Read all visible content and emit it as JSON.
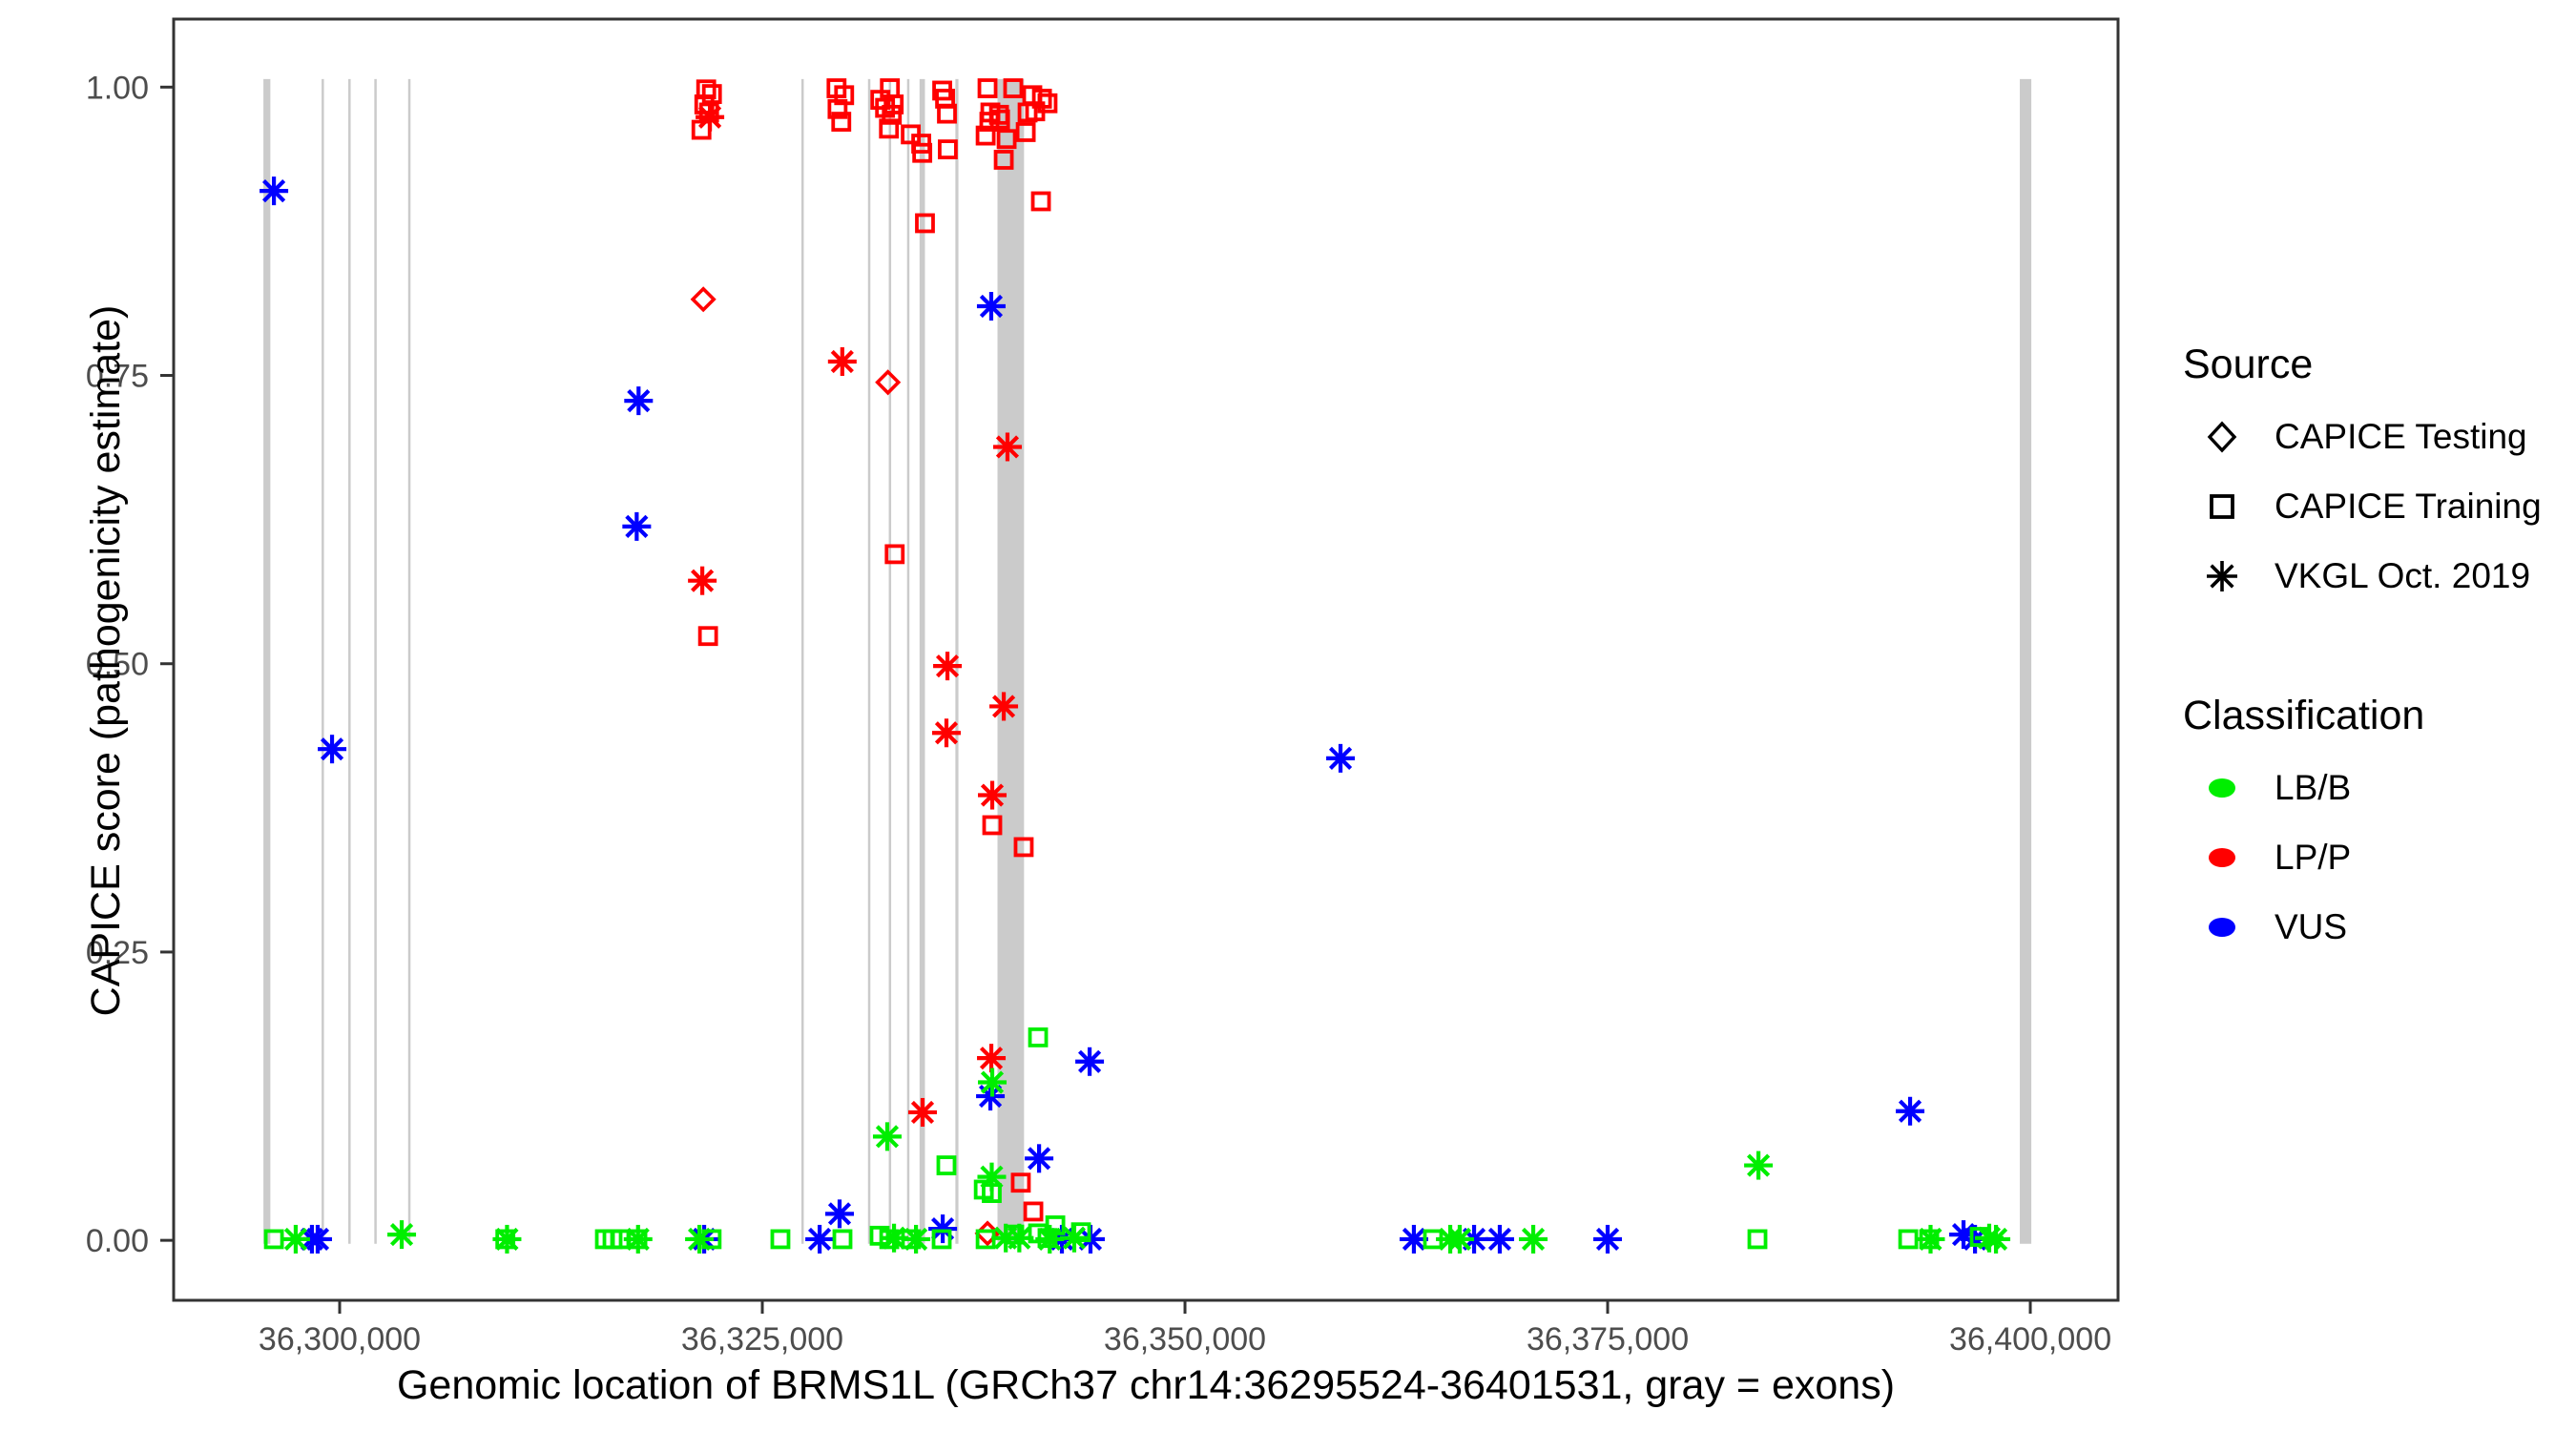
{
  "chart_data": {
    "type": "scatter",
    "title": "",
    "xlabel": "Genomic location of BRMS1L (GRCh37 chr14:36295524-36401531, gray = exons)",
    "ylabel": "CAPICE score (pathogenicity estimate)",
    "x_range": [
      36290180,
      36405190
    ],
    "y_range": [
      -0.052,
      1.059
    ],
    "x_ticks": [
      {
        "value": 36300000,
        "label": "36,300,000"
      },
      {
        "value": 36325000,
        "label": "36,325,000"
      },
      {
        "value": 36350000,
        "label": "36,350,000"
      },
      {
        "value": 36375000,
        "label": "36,375,000"
      },
      {
        "value": 36400000,
        "label": "36,400,000"
      }
    ],
    "y_ticks": [
      {
        "value": 0.0,
        "label": "0.00"
      },
      {
        "value": 0.25,
        "label": "0.25"
      },
      {
        "value": 0.5,
        "label": "0.50"
      },
      {
        "value": 0.75,
        "label": "0.75"
      },
      {
        "value": 1.0,
        "label": "1.00"
      }
    ],
    "grid": false,
    "exons_note": "gray vertical bars = exons, span score 0 to 1",
    "exons": [
      [
        36295490,
        36295900
      ],
      [
        36298930,
        36299040
      ],
      [
        36300510,
        36300630
      ],
      [
        36302050,
        36302170
      ],
      [
        36304050,
        36304170
      ],
      [
        36327310,
        36327430
      ],
      [
        36331250,
        36331370
      ],
      [
        36332480,
        36332600
      ],
      [
        36333560,
        36333680
      ],
      [
        36334300,
        36334620
      ],
      [
        36336420,
        36336600
      ],
      [
        36338910,
        36340480
      ],
      [
        36399380,
        36400060
      ]
    ],
    "points_format": [
      "genomic_position",
      "capice_score",
      "shape: s=square(CAPICE Training) d=diamond(CAPICE Testing) a=asterisk(VKGL Oct. 2019)",
      "class: b=LB/B p=LP/P v=VUS"
    ],
    "points": [
      [
        36321680,
        0.998,
        "s",
        "p"
      ],
      [
        36322020,
        0.994,
        "s",
        "p"
      ],
      [
        36321570,
        0.985,
        "s",
        "p"
      ],
      [
        36321850,
        0.978,
        "s",
        "p"
      ],
      [
        36321400,
        0.963,
        "s",
        "p"
      ],
      [
        36329390,
        0.999,
        "s",
        "p"
      ],
      [
        36329840,
        0.993,
        "s",
        "p"
      ],
      [
        36329450,
        0.981,
        "s",
        "p"
      ],
      [
        36329670,
        0.97,
        "s",
        "p"
      ],
      [
        36332545,
        0.999,
        "s",
        "p"
      ],
      [
        36331980,
        0.989,
        "s",
        "p"
      ],
      [
        36332770,
        0.985,
        "s",
        "p"
      ],
      [
        36332260,
        0.982,
        "s",
        "p"
      ],
      [
        36332660,
        0.976,
        "s",
        "p"
      ],
      [
        36332490,
        0.964,
        "s",
        "p"
      ],
      [
        36333780,
        0.959,
        "s",
        "p"
      ],
      [
        36334400,
        0.951,
        "s",
        "p"
      ],
      [
        36334460,
        0.943,
        "s",
        "p"
      ],
      [
        36334620,
        0.882,
        "s",
        "p"
      ],
      [
        36335640,
        0.997,
        "s",
        "p"
      ],
      [
        36335810,
        0.99,
        "s",
        "p"
      ],
      [
        36335920,
        0.977,
        "s",
        "p"
      ],
      [
        36335970,
        0.946,
        "s",
        "p"
      ],
      [
        36338320,
        0.999,
        "s",
        "p"
      ],
      [
        36339840,
        0.999,
        "s",
        "p"
      ],
      [
        36340970,
        0.993,
        "s",
        "p"
      ],
      [
        36341540,
        0.99,
        "s",
        "p"
      ],
      [
        36341870,
        0.986,
        "s",
        "p"
      ],
      [
        36341140,
        0.979,
        "s",
        "p"
      ],
      [
        36338490,
        0.978,
        "s",
        "p"
      ],
      [
        36339000,
        0.976,
        "s",
        "p"
      ],
      [
        36339060,
        0.972,
        "s",
        "p"
      ],
      [
        36338430,
        0.97,
        "s",
        "p"
      ],
      [
        36340690,
        0.978,
        "s",
        "p"
      ],
      [
        36338210,
        0.958,
        "s",
        "p"
      ],
      [
        36339450,
        0.955,
        "s",
        "p"
      ],
      [
        36340580,
        0.961,
        "s",
        "p"
      ],
      [
        36339280,
        0.937,
        "s",
        "p"
      ],
      [
        36341480,
        0.901,
        "s",
        "p"
      ],
      [
        36321790,
        0.524,
        "s",
        "p"
      ],
      [
        36332830,
        0.595,
        "s",
        "p"
      ],
      [
        36338600,
        0.36,
        "s",
        "p"
      ],
      [
        36340460,
        0.341,
        "s",
        "p"
      ],
      [
        36340290,
        0.05,
        "s",
        "p"
      ],
      [
        36341030,
        0.025,
        "s",
        "p"
      ],
      [
        36321510,
        0.816,
        "d",
        "p"
      ],
      [
        36332430,
        0.744,
        "d",
        "p"
      ],
      [
        36338320,
        0.006,
        "d",
        "p"
      ],
      [
        36321900,
        0.974,
        "a",
        "p"
      ],
      [
        36329730,
        0.762,
        "a",
        "p"
      ],
      [
        36321450,
        0.572,
        "a",
        "p"
      ],
      [
        36339500,
        0.688,
        "a",
        "p"
      ],
      [
        36335950,
        0.498,
        "a",
        "p"
      ],
      [
        36339280,
        0.463,
        "a",
        "p"
      ],
      [
        36335890,
        0.44,
        "a",
        "p"
      ],
      [
        36338600,
        0.386,
        "a",
        "p"
      ],
      [
        36334480,
        0.111,
        "a",
        "p"
      ],
      [
        36338545,
        0.158,
        "a",
        "p"
      ],
      [
        36296110,
        0.91,
        "a",
        "v"
      ],
      [
        36299550,
        0.426,
        "a",
        "v"
      ],
      [
        36317680,
        0.728,
        "a",
        "v"
      ],
      [
        36317570,
        0.619,
        "a",
        "v"
      ],
      [
        36338540,
        0.81,
        "a",
        "v"
      ],
      [
        36359200,
        0.418,
        "a",
        "v"
      ],
      [
        36344360,
        0.155,
        "a",
        "v"
      ],
      [
        36338490,
        0.125,
        "a",
        "v"
      ],
      [
        36341370,
        0.071,
        "a",
        "v"
      ],
      [
        36329570,
        0.023,
        "a",
        "v"
      ],
      [
        36335670,
        0.01,
        "a",
        "v"
      ],
      [
        36392890,
        0.112,
        "a",
        "v"
      ],
      [
        36396050,
        0.005,
        "a",
        "v"
      ],
      [
        36298360,
        0.001,
        "a",
        "v"
      ],
      [
        36298700,
        0.001,
        "a",
        "v"
      ],
      [
        36321560,
        0.001,
        "a",
        "v"
      ],
      [
        36328390,
        0.001,
        "a",
        "v"
      ],
      [
        36342720,
        0.001,
        "a",
        "v"
      ],
      [
        36344410,
        0.001,
        "a",
        "v"
      ],
      [
        36363540,
        0.001,
        "a",
        "v"
      ],
      [
        36367100,
        0.001,
        "a",
        "v"
      ],
      [
        36368620,
        0.001,
        "a",
        "v"
      ],
      [
        36375000,
        0.001,
        "a",
        "v"
      ],
      [
        36396730,
        0.001,
        "a",
        "v"
      ],
      [
        36296110,
        0.001,
        "s",
        "b"
      ],
      [
        36309800,
        0.001,
        "s",
        "b"
      ],
      [
        36315690,
        0.001,
        "s",
        "b"
      ],
      [
        36316140,
        0.001,
        "s",
        "b"
      ],
      [
        36316590,
        0.001,
        "s",
        "b"
      ],
      [
        36317610,
        0.001,
        "s",
        "b"
      ],
      [
        36322000,
        0.001,
        "s",
        "b"
      ],
      [
        36326070,
        0.001,
        "s",
        "b"
      ],
      [
        36329740,
        0.001,
        "s",
        "b"
      ],
      [
        36331940,
        0.004,
        "s",
        "b"
      ],
      [
        36332510,
        0.001,
        "s",
        "b"
      ],
      [
        36333800,
        0.001,
        "s",
        "b"
      ],
      [
        36335610,
        0.001,
        "s",
        "b"
      ],
      [
        36338210,
        0.001,
        "s",
        "b"
      ],
      [
        36341310,
        0.176,
        "s",
        "b"
      ],
      [
        36335890,
        0.065,
        "s",
        "b"
      ],
      [
        36338570,
        0.041,
        "s",
        "b"
      ],
      [
        36338100,
        0.044,
        "s",
        "b"
      ],
      [
        36339900,
        0.005,
        "s",
        "b"
      ],
      [
        36341310,
        0.006,
        "s",
        "b"
      ],
      [
        36341870,
        0.002,
        "s",
        "b"
      ],
      [
        36342330,
        0.013,
        "s",
        "b"
      ],
      [
        36343850,
        0.007,
        "s",
        "b"
      ],
      [
        36364670,
        0.001,
        "s",
        "b"
      ],
      [
        36383860,
        0.001,
        "s",
        "b"
      ],
      [
        36392780,
        0.001,
        "s",
        "b"
      ],
      [
        36394020,
        0.001,
        "s",
        "b"
      ],
      [
        36397010,
        0.003,
        "s",
        "b"
      ],
      [
        36297400,
        0.001,
        "a",
        "b"
      ],
      [
        36303670,
        0.005,
        "a",
        "b"
      ],
      [
        36309900,
        0.001,
        "a",
        "b"
      ],
      [
        36317650,
        0.001,
        "a",
        "b"
      ],
      [
        36321280,
        0.001,
        "a",
        "b"
      ],
      [
        36332390,
        0.09,
        "a",
        "b"
      ],
      [
        36332790,
        0.002,
        "a",
        "b"
      ],
      [
        36334090,
        0.001,
        "a",
        "b"
      ],
      [
        36338600,
        0.137,
        "a",
        "b"
      ],
      [
        36338570,
        0.055,
        "a",
        "b"
      ],
      [
        36339400,
        0.002,
        "a",
        "b"
      ],
      [
        36340200,
        0.002,
        "a",
        "b"
      ],
      [
        36342000,
        0.001,
        "a",
        "b"
      ],
      [
        36343450,
        0.002,
        "a",
        "b"
      ],
      [
        36365690,
        0.001,
        "a",
        "b"
      ],
      [
        36366250,
        0.001,
        "a",
        "b"
      ],
      [
        36370600,
        0.001,
        "a",
        "b"
      ],
      [
        36383920,
        0.065,
        "a",
        "b"
      ],
      [
        36394100,
        0.001,
        "a",
        "b"
      ],
      [
        36397570,
        0.002,
        "a",
        "b"
      ],
      [
        36397970,
        0.001,
        "a",
        "b"
      ]
    ]
  },
  "legend": {
    "source": {
      "title": "Source",
      "items": [
        {
          "shape": "diamond",
          "label": "CAPICE Testing"
        },
        {
          "shape": "square",
          "label": "CAPICE Training"
        },
        {
          "shape": "asterisk",
          "label": "VKGL Oct. 2019"
        }
      ]
    },
    "classification": {
      "title": "Classification",
      "items": [
        {
          "color_key": "lbb",
          "label": "LB/B"
        },
        {
          "color_key": "lpp",
          "label": "LP/P"
        },
        {
          "color_key": "vus",
          "label": "VUS"
        }
      ]
    }
  },
  "colors": {
    "lbb": "#00EE00",
    "lpp": "#FF0000",
    "vus": "#0000FF",
    "exon": "#CBCBCB",
    "tick_label": "#4D4D4D",
    "axis_line": "#333333",
    "legend_symbol": "#000000"
  }
}
